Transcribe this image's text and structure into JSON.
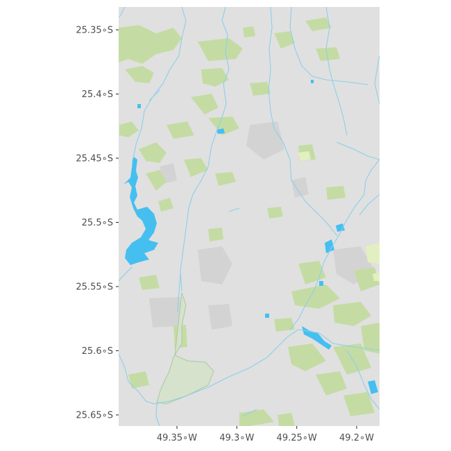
{
  "map": {
    "colors": {
      "land": "#e0e0e0",
      "green": "#c4dca4",
      "water": "#45bff0",
      "river": "#8ccfea",
      "urban": "#d2d2d2",
      "boundary": "#a8c9a0"
    },
    "lat_ticks": [
      {
        "value": -25.35,
        "label": "25.35∘S"
      },
      {
        "value": -25.4,
        "label": "25.4∘S"
      },
      {
        "value": -25.45,
        "label": "25.45∘S"
      },
      {
        "value": -25.5,
        "label": "25.5∘S"
      },
      {
        "value": -25.55,
        "label": "25.55∘S"
      },
      {
        "value": -25.6,
        "label": "25.6∘S"
      },
      {
        "value": -25.65,
        "label": "25.65∘S"
      }
    ],
    "lon_ticks": [
      {
        "value": -49.35,
        "label": "49.35∘W"
      },
      {
        "value": -49.3,
        "label": "49.3∘W"
      },
      {
        "value": -49.25,
        "label": "49.25∘W"
      },
      {
        "value": -49.2,
        "label": "49.2∘W"
      }
    ]
  }
}
